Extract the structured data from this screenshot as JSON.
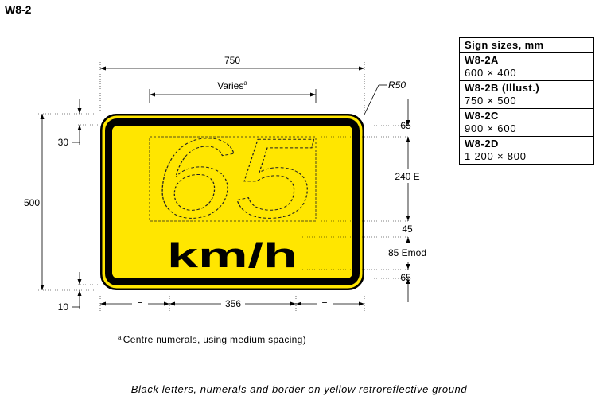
{
  "figure": {
    "sign_code": "W8-2",
    "caption": "Black letters, numerals and border on yellow retroreflective ground",
    "footnote_marker": "a",
    "footnote_text": "Centre numerals, using medium spacing)"
  },
  "sign": {
    "numerals": "65",
    "unit_text": "km/h",
    "ground_color": "#FFE600",
    "legend_color": "#000000"
  },
  "dimensions": {
    "overall_width": "750",
    "numeral_width": "Varies",
    "numeral_width_sup": "a",
    "corner_radius": "R50",
    "overall_height": "500",
    "border_top": "30",
    "border_bottom": "10",
    "top_margin": "65",
    "numeral_height": "240 E",
    "gap": "45",
    "unit_height": "85 Emod",
    "bottom_margin": "65",
    "bottom_left": "=",
    "bottom_center": "356",
    "bottom_right": "="
  },
  "size_table": {
    "header": "Sign sizes, mm",
    "rows": [
      {
        "code": "W8-2A",
        "size": "600 × 400"
      },
      {
        "code": "W8-2B (Illust.)",
        "size": "750 × 500"
      },
      {
        "code": "W8-2C",
        "size": "900 × 600"
      },
      {
        "code": "W8-2D",
        "size": "1 200 × 800"
      }
    ]
  }
}
